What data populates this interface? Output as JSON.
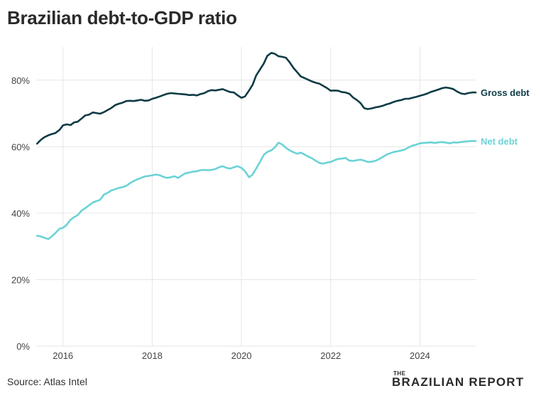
{
  "title": "Brazilian debt-to-GDP ratio",
  "source": "Source: Atlas Intel",
  "brand": {
    "prefix": "THE",
    "name": "BRAZILIAN REPORT"
  },
  "colors": {
    "gross": "#0d3b45",
    "net": "#6bd3d6",
    "grid": "#e6e6e6",
    "axis_text": "#444444"
  },
  "chart_data": {
    "type": "line",
    "title": "Brazilian debt-to-GDP ratio",
    "xlabel": "",
    "ylabel": "",
    "xlim": [
      2015.4,
      2025.25
    ],
    "ylim": [
      0,
      90
    ],
    "x_ticks": [
      2016,
      2018,
      2020,
      2022,
      2024
    ],
    "x_tick_labels": [
      "2016",
      "2018",
      "2020",
      "2022",
      "2024"
    ],
    "y_ticks": [
      0,
      20,
      40,
      60,
      80
    ],
    "y_tick_labels": [
      "0%",
      "20%",
      "40%",
      "60%",
      "80%"
    ],
    "grid": true,
    "legend": "direct labels at line ends",
    "series": [
      {
        "name": "Gross debt",
        "x": [
          2015.42,
          2015.5,
          2015.58,
          2015.67,
          2015.75,
          2015.83,
          2015.92,
          2016.0,
          2016.08,
          2016.17,
          2016.25,
          2016.33,
          2016.42,
          2016.5,
          2016.58,
          2016.67,
          2016.75,
          2016.83,
          2016.92,
          2017.0,
          2017.08,
          2017.17,
          2017.25,
          2017.33,
          2017.42,
          2017.5,
          2017.58,
          2017.67,
          2017.75,
          2017.83,
          2017.92,
          2018.0,
          2018.08,
          2018.17,
          2018.25,
          2018.33,
          2018.42,
          2018.5,
          2018.58,
          2018.67,
          2018.75,
          2018.83,
          2018.92,
          2019.0,
          2019.08,
          2019.17,
          2019.25,
          2019.33,
          2019.42,
          2019.5,
          2019.58,
          2019.67,
          2019.75,
          2019.83,
          2019.92,
          2020.0,
          2020.08,
          2020.17,
          2020.25,
          2020.33,
          2020.42,
          2020.5,
          2020.58,
          2020.67,
          2020.75,
          2020.83,
          2020.92,
          2021.0,
          2021.08,
          2021.17,
          2021.25,
          2021.33,
          2021.42,
          2021.5,
          2021.58,
          2021.67,
          2021.75,
          2021.83,
          2021.92,
          2022.0,
          2022.08,
          2022.17,
          2022.25,
          2022.33,
          2022.42,
          2022.5,
          2022.58,
          2022.67,
          2022.75,
          2022.83,
          2022.92,
          2023.0,
          2023.08,
          2023.17,
          2023.25,
          2023.33,
          2023.42,
          2023.5,
          2023.58,
          2023.67,
          2023.75,
          2023.83,
          2023.92,
          2024.0,
          2024.08,
          2024.17,
          2024.25,
          2024.33,
          2024.42,
          2024.5,
          2024.58,
          2024.67,
          2024.75,
          2024.83,
          2024.92,
          2025.0,
          2025.08,
          2025.17,
          2025.25
        ],
        "values": [
          60.9,
          62.0,
          62.8,
          63.4,
          63.8,
          64.1,
          65.0,
          66.4,
          66.7,
          66.5,
          67.3,
          67.5,
          68.5,
          69.4,
          69.6,
          70.3,
          70.1,
          69.9,
          70.4,
          71.0,
          71.6,
          72.5,
          72.9,
          73.2,
          73.7,
          73.8,
          73.7,
          73.9,
          74.1,
          73.8,
          73.9,
          74.4,
          74.7,
          75.1,
          75.5,
          75.9,
          76.1,
          76.0,
          75.9,
          75.8,
          75.7,
          75.5,
          75.6,
          75.4,
          75.8,
          76.1,
          76.7,
          77.0,
          76.9,
          77.1,
          77.3,
          76.8,
          76.4,
          76.3,
          75.4,
          74.7,
          75.1,
          76.9,
          78.6,
          81.4,
          83.3,
          85.0,
          87.3,
          88.2,
          87.9,
          87.2,
          87.0,
          86.7,
          85.4,
          83.6,
          82.4,
          81.1,
          80.6,
          80.1,
          79.6,
          79.2,
          78.9,
          78.3,
          77.6,
          76.8,
          76.9,
          76.8,
          76.4,
          76.3,
          75.9,
          74.8,
          74.1,
          73.1,
          71.6,
          71.3,
          71.5,
          71.8,
          72.0,
          72.3,
          72.7,
          73.0,
          73.5,
          73.8,
          74.0,
          74.4,
          74.4,
          74.7,
          75.0,
          75.3,
          75.6,
          76.0,
          76.5,
          76.8,
          77.2,
          77.6,
          77.8,
          77.6,
          77.3,
          76.6,
          76.0,
          75.8,
          76.1,
          76.3,
          76.3
        ]
      },
      {
        "name": "Net debt",
        "x": [
          2015.42,
          2015.5,
          2015.58,
          2015.67,
          2015.75,
          2015.83,
          2015.92,
          2016.0,
          2016.08,
          2016.17,
          2016.25,
          2016.33,
          2016.42,
          2016.5,
          2016.58,
          2016.67,
          2016.75,
          2016.83,
          2016.92,
          2017.0,
          2017.08,
          2017.17,
          2017.25,
          2017.33,
          2017.42,
          2017.5,
          2017.58,
          2017.67,
          2017.75,
          2017.83,
          2017.92,
          2018.0,
          2018.08,
          2018.17,
          2018.25,
          2018.33,
          2018.42,
          2018.5,
          2018.58,
          2018.67,
          2018.75,
          2018.83,
          2018.92,
          2019.0,
          2019.08,
          2019.17,
          2019.25,
          2019.33,
          2019.42,
          2019.5,
          2019.58,
          2019.67,
          2019.75,
          2019.83,
          2019.92,
          2020.0,
          2020.08,
          2020.17,
          2020.25,
          2020.33,
          2020.42,
          2020.5,
          2020.58,
          2020.67,
          2020.75,
          2020.83,
          2020.92,
          2021.0,
          2021.08,
          2021.17,
          2021.25,
          2021.33,
          2021.42,
          2021.5,
          2021.58,
          2021.67,
          2021.75,
          2021.83,
          2021.92,
          2022.0,
          2022.08,
          2022.17,
          2022.25,
          2022.33,
          2022.42,
          2022.5,
          2022.58,
          2022.67,
          2022.75,
          2022.83,
          2022.92,
          2023.0,
          2023.08,
          2023.17,
          2023.25,
          2023.33,
          2023.42,
          2023.5,
          2023.58,
          2023.67,
          2023.75,
          2023.83,
          2023.92,
          2024.0,
          2024.08,
          2024.17,
          2024.25,
          2024.33,
          2024.42,
          2024.5,
          2024.58,
          2024.67,
          2024.75,
          2024.83,
          2024.92,
          2025.0,
          2025.08,
          2025.17,
          2025.25
        ],
        "values": [
          33.2,
          33.0,
          32.6,
          32.2,
          33.0,
          34.0,
          35.3,
          35.6,
          36.4,
          38.0,
          38.8,
          39.4,
          40.8,
          41.5,
          42.3,
          43.2,
          43.6,
          44.0,
          45.6,
          46.1,
          46.8,
          47.2,
          47.6,
          47.8,
          48.2,
          49.0,
          49.6,
          50.2,
          50.6,
          51.0,
          51.2,
          51.4,
          51.6,
          51.4,
          50.9,
          50.6,
          50.8,
          51.1,
          50.6,
          51.4,
          52.0,
          52.2,
          52.5,
          52.6,
          52.9,
          53.0,
          52.9,
          53.0,
          53.3,
          53.8,
          54.1,
          53.6,
          53.4,
          53.8,
          54.1,
          53.6,
          52.6,
          50.8,
          51.6,
          53.4,
          55.5,
          57.5,
          58.4,
          58.9,
          59.8,
          61.2,
          60.6,
          59.6,
          58.9,
          58.3,
          57.9,
          58.2,
          57.6,
          57.0,
          56.5,
          55.7,
          55.1,
          54.9,
          55.2,
          55.4,
          55.9,
          56.3,
          56.4,
          56.6,
          55.8,
          55.7,
          55.9,
          56.1,
          55.8,
          55.4,
          55.5,
          55.7,
          56.2,
          56.9,
          57.6,
          58.0,
          58.4,
          58.6,
          58.8,
          59.2,
          59.8,
          60.3,
          60.6,
          61.0,
          61.1,
          61.2,
          61.3,
          61.1,
          61.3,
          61.4,
          61.2,
          61.0,
          61.3,
          61.2,
          61.4,
          61.5,
          61.6,
          61.7,
          61.7
        ]
      }
    ]
  }
}
